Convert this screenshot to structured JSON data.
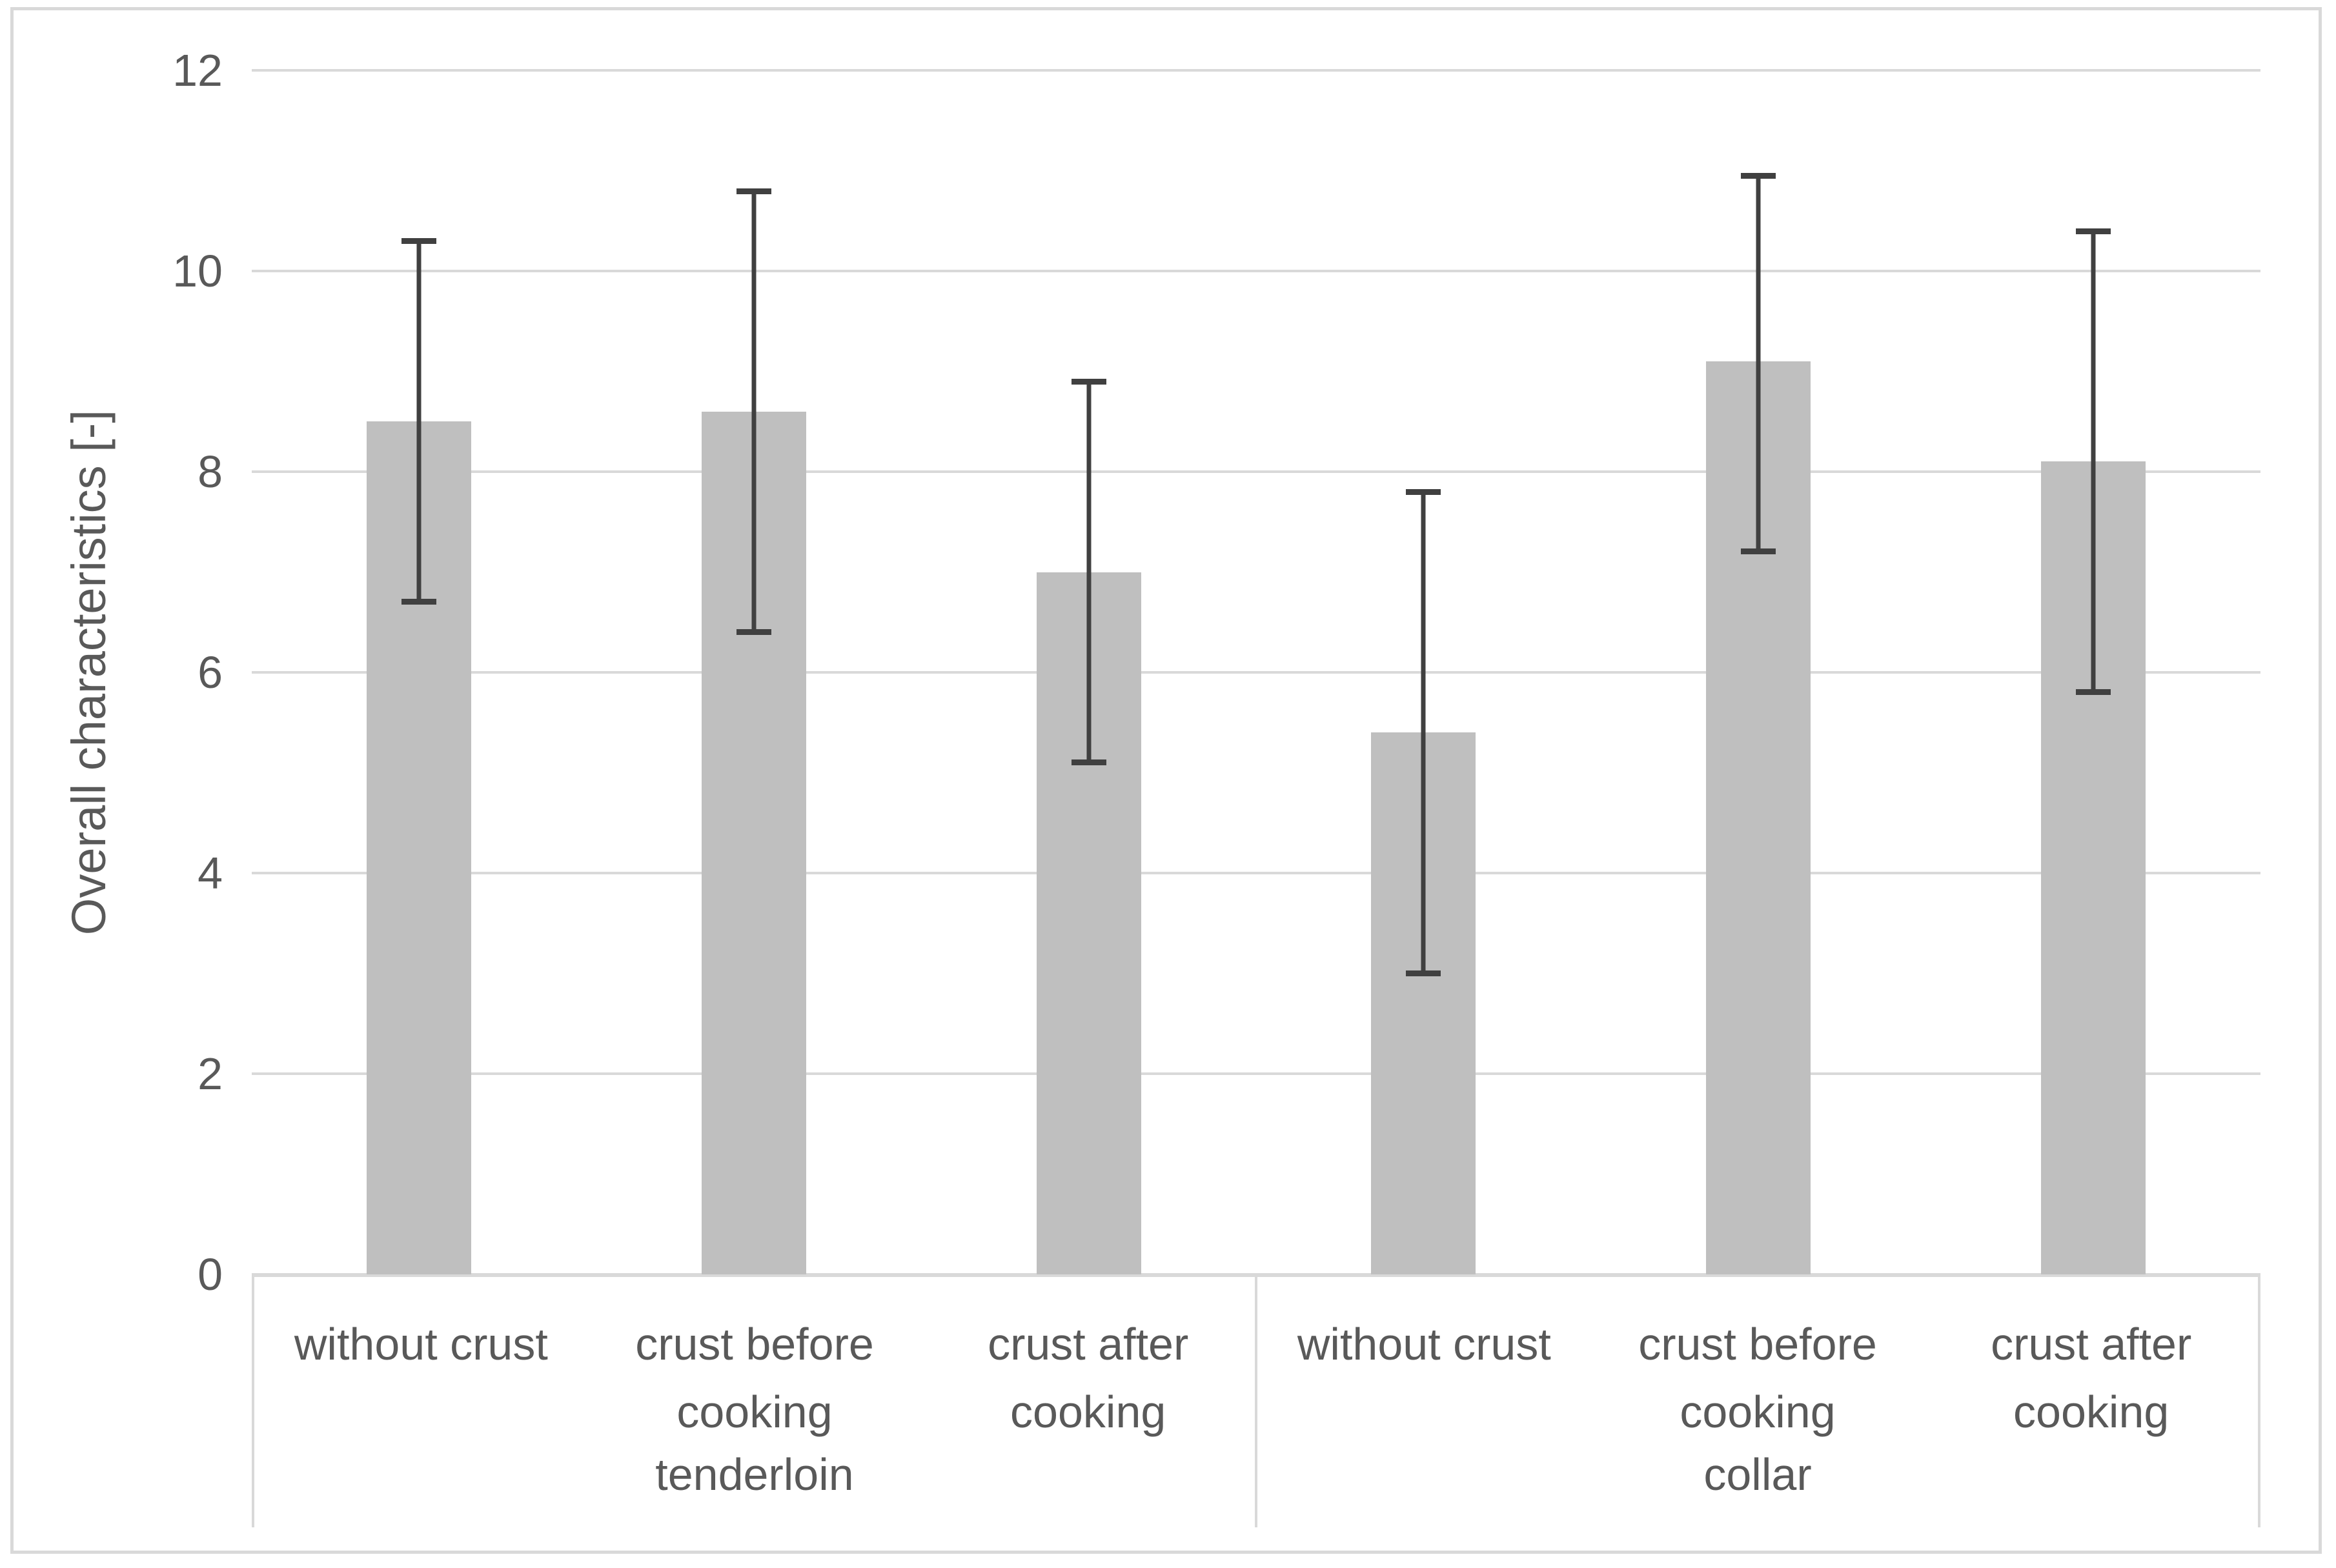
{
  "chart_data": {
    "type": "bar",
    "title": "",
    "ylabel": "Overall characteristics [-]",
    "xlabel": "",
    "ylim": [
      0,
      12
    ],
    "yticks": [
      12,
      10,
      8,
      6,
      4,
      2,
      0
    ],
    "grid": true,
    "legend": "none",
    "bar_color": "#bfbfbf",
    "error_bar_color": "#404040",
    "gridline_color": "#d9d9d9",
    "axis_text_color": "#595959",
    "frame_color": "#d9d9d9",
    "groups": [
      {
        "label": "tenderloin",
        "categories": [
          "without crust",
          "crust before cooking",
          "crust after cooking"
        ],
        "values": [
          8.5,
          8.6,
          7.0
        ],
        "error_low": [
          6.7,
          6.4,
          5.1
        ],
        "error_high": [
          10.3,
          10.8,
          8.9
        ]
      },
      {
        "label": "collar",
        "categories": [
          "without crust",
          "crust before cooking",
          "crust after cooking"
        ],
        "values": [
          5.4,
          9.1,
          8.1
        ],
        "error_low": [
          3.0,
          7.2,
          5.8
        ],
        "error_high": [
          7.8,
          10.95,
          10.4
        ]
      }
    ]
  }
}
